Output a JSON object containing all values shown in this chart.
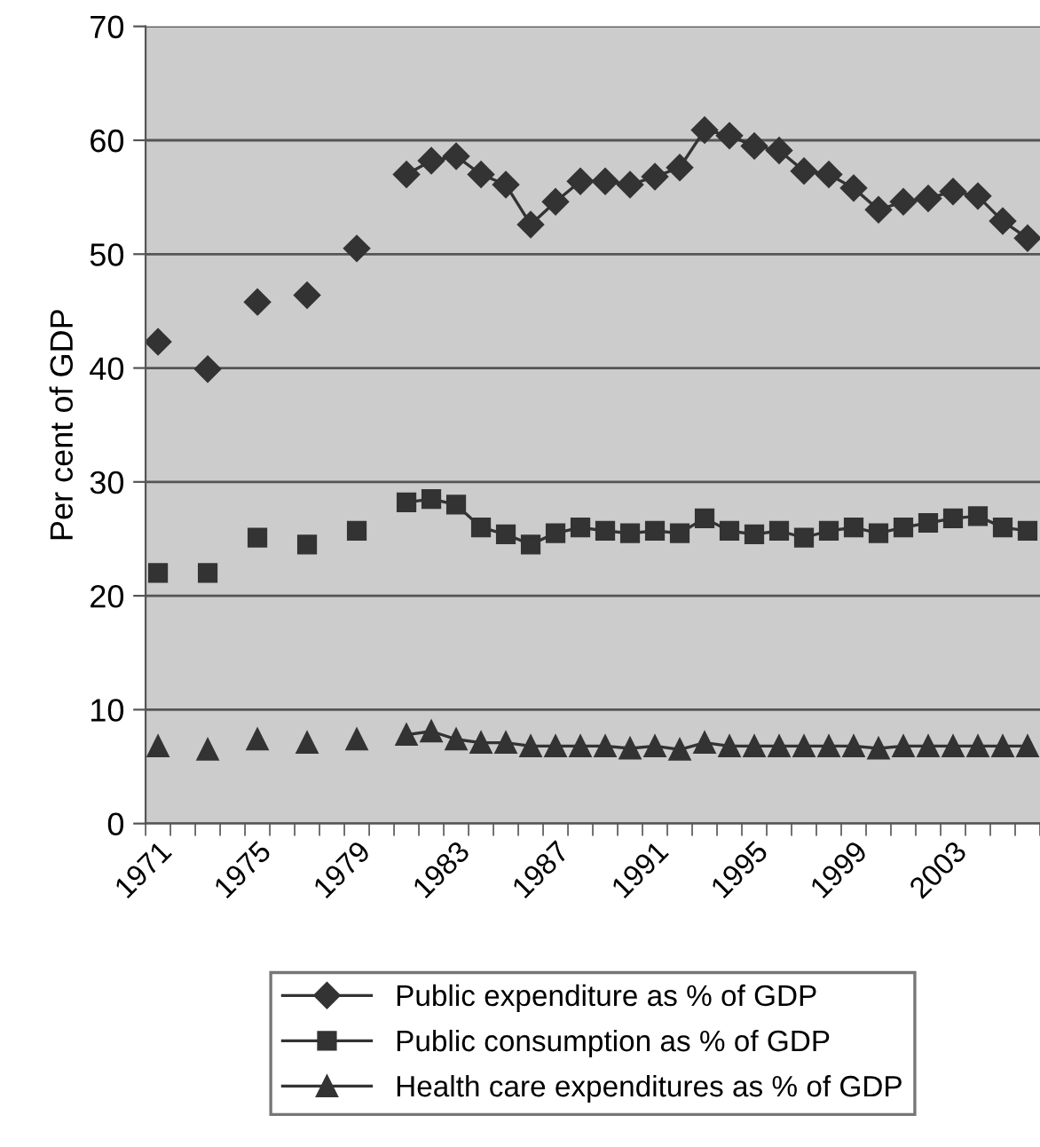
{
  "chart_data": {
    "type": "line",
    "ylabel": "Per cent of GDP",
    "categories": [
      "1971",
      null,
      null,
      null,
      "1975",
      null,
      null,
      null,
      "1979",
      null,
      null,
      null,
      "1983",
      null,
      null,
      null,
      "1987",
      null,
      null,
      null,
      "1991",
      null,
      null,
      null,
      "1995",
      null,
      null,
      null,
      "1999",
      null,
      null,
      null,
      "2003",
      null,
      null,
      null
    ],
    "series": [
      {
        "name": "Public expenditure as % of GDP",
        "color": "#333333",
        "marker": "diamond",
        "values": [
          42.3,
          null,
          39.9,
          null,
          45.8,
          null,
          46.4,
          null,
          50.5,
          null,
          57.0,
          58.2,
          58.6,
          57.0,
          56.1,
          52.6,
          54.6,
          56.4,
          56.4,
          56.1,
          56.8,
          57.6,
          60.9,
          60.4,
          59.5,
          59.1,
          57.3,
          57.0,
          55.8,
          53.9,
          54.6,
          54.9,
          55.5,
          55.1,
          52.9,
          51.4
        ]
      },
      {
        "name": "Public consumption as % of GDP",
        "color": "#333333",
        "marker": "square",
        "values": [
          22.0,
          null,
          22.0,
          null,
          25.1,
          null,
          24.5,
          null,
          25.7,
          null,
          28.2,
          28.5,
          28.0,
          26.0,
          25.4,
          24.5,
          25.5,
          26.0,
          25.7,
          25.5,
          25.7,
          25.5,
          26.8,
          25.7,
          25.4,
          25.7,
          25.1,
          25.7,
          26.0,
          25.5,
          26.0,
          26.4,
          26.8,
          27.0,
          26.0,
          25.7
        ]
      },
      {
        "name": "Health care expenditures as % of GDP",
        "color": "#333333",
        "marker": "triangle",
        "values": [
          6.8,
          null,
          6.5,
          null,
          7.4,
          null,
          7.1,
          null,
          7.4,
          null,
          7.8,
          8.1,
          7.4,
          7.1,
          7.1,
          6.8,
          6.8,
          6.8,
          6.8,
          6.6,
          6.8,
          6.5,
          7.1,
          6.8,
          6.8,
          6.8,
          6.8,
          6.8,
          6.8,
          6.6,
          6.8,
          6.8,
          6.8,
          6.8,
          6.8,
          6.8
        ]
      }
    ],
    "ylim": [
      0,
      70
    ],
    "yticks": [
      0,
      10,
      20,
      30,
      40,
      50,
      60,
      70
    ],
    "grid": "y",
    "legend": "bottom",
    "line_style": "solid"
  }
}
